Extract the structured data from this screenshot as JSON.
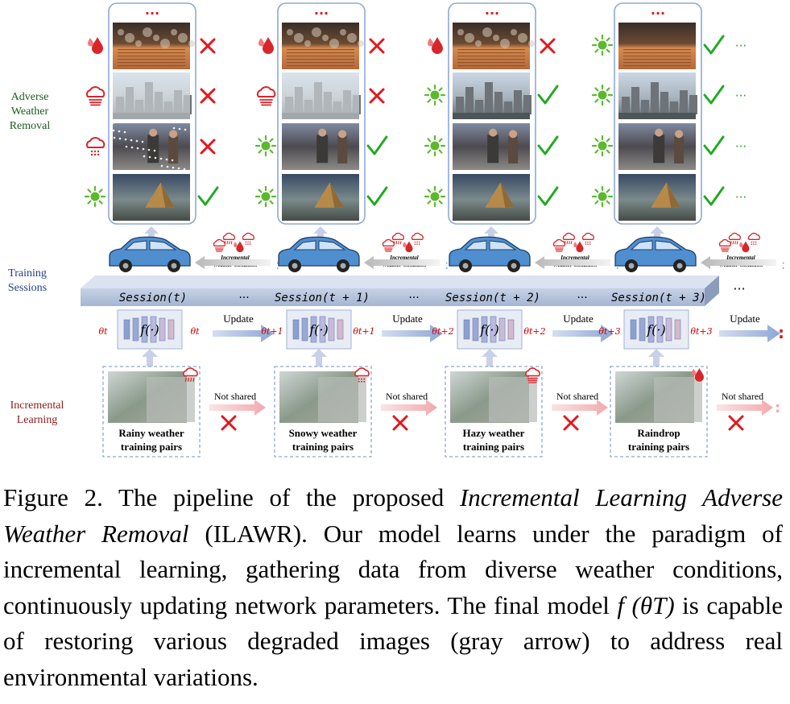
{
  "sections": {
    "removal": [
      "Adverse",
      "Weather",
      "Removal"
    ],
    "training": [
      "Training",
      "Sessions"
    ],
    "learning": [
      "Incremental",
      "Learning"
    ]
  },
  "sessions": [
    "Session(t)",
    "Session(t + 1)",
    "Session(t + 2)",
    "Session(t + 3)"
  ],
  "ellipsis": "···",
  "column_top_dots": "···",
  "theta_in": [
    "θt",
    "θt+1",
    "θt+2",
    "θt+3"
  ],
  "theta_out": [
    "θt",
    "θt+1",
    "θt+2",
    "θt+3"
  ],
  "network_label": "f(·)",
  "update_label": "Update",
  "not_shared_label": "Not shared",
  "incremental_condition": [
    "Incremental",
    "Weather Condition"
  ],
  "training_pairs": [
    {
      "title": "Rainy weather",
      "sub": "training pairs",
      "icon": "rain-cloud-icon"
    },
    {
      "title": "Snowy weather",
      "sub": "training pairs",
      "icon": "snow-cloud-icon"
    },
    {
      "title": "Hazy weather",
      "sub": "training pairs",
      "icon": "haze-cloud-icon"
    },
    {
      "title": "Raindrop",
      "sub": "training pairs",
      "icon": "raindrop-icon"
    }
  ],
  "columns": [
    {
      "row_icons": [
        "raindrop-icon",
        "haze-cloud-icon",
        "snow-cloud-icon",
        "sun-icon"
      ],
      "marks": [
        "cross",
        "cross",
        "cross",
        "check"
      ],
      "trail": false
    },
    {
      "row_icons": [
        "raindrop-icon",
        "haze-cloud-icon",
        "sun-icon",
        "sun-icon"
      ],
      "marks": [
        "cross",
        "cross",
        "check",
        "check"
      ],
      "trail": false
    },
    {
      "row_icons": [
        "raindrop-icon",
        "sun-icon",
        "sun-icon",
        "sun-icon"
      ],
      "marks": [
        "cross",
        "check",
        "check",
        "check"
      ],
      "trail": false
    },
    {
      "row_icons": [
        "sun-icon",
        "sun-icon",
        "sun-icon",
        "sun-icon"
      ],
      "marks": [
        "check",
        "check",
        "check",
        "check"
      ],
      "trail": true
    }
  ],
  "colors": {
    "check": "#22aa22",
    "cross": "#e3181d",
    "weather_red": "#d8262b",
    "sun": "#5cb82e",
    "session_band": "#b8c6dd",
    "car": "#4f8fd0",
    "theta": "#cc0000"
  },
  "caption": {
    "prefix": "Figure 2. The pipeline of the proposed ",
    "italic_title": "Incremental Learning Adverse Weather Removal",
    "middle": " (ILAWR). Our model learns under the paradigm of incremental learning, gathering data from diverse weather conditions, continuously updating network parameters. The final model ",
    "math": "f (θT)",
    "suffix": " is capable of restoring various degraded images (gray arrow) to address real environmental variations."
  }
}
